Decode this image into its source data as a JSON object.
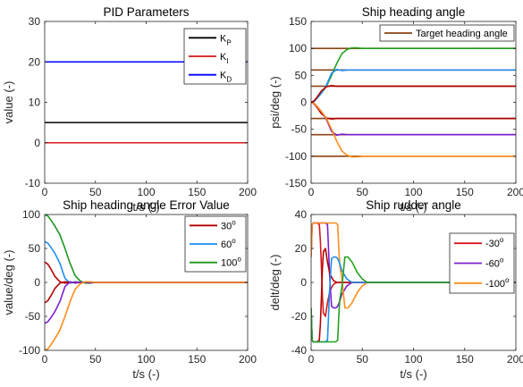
{
  "colors": {
    "black": "#000000",
    "red": "#d7191c",
    "blue": "#0000ff",
    "brown": "#8b4513",
    "green": "#22a022",
    "purple": "#7d1fd1",
    "orange": "#ff8c1a",
    "darkred": "#b50000",
    "lightblue": "#1f8ef1",
    "darkgreen": "#1e961e",
    "axis": "#262626"
  },
  "chart_data": [
    {
      "id": "pid",
      "type": "line",
      "title": "PID Parameters",
      "xlabel": "t/s (-)",
      "ylabel": "value (-)",
      "xlim": [
        0,
        200
      ],
      "ylim": [
        -10,
        30
      ],
      "xticks": [
        "0",
        "50",
        "100",
        "150",
        "200"
      ],
      "yticks": [
        "-10",
        "0",
        "10",
        "20",
        "30"
      ],
      "legend_position": "top-right",
      "series": [
        {
          "name": "K_P",
          "label_main": "K",
          "label_sub": "P",
          "color": "black",
          "x": [
            0,
            200
          ],
          "y": [
            5,
            5
          ]
        },
        {
          "name": "K_I",
          "label_main": "K",
          "label_sub": "I",
          "color": "red",
          "x": [
            0,
            200
          ],
          "y": [
            0,
            0
          ]
        },
        {
          "name": "K_D",
          "label_main": "K",
          "label_sub": "D",
          "color": "blue",
          "x": [
            0,
            200
          ],
          "y": [
            20,
            20
          ]
        }
      ]
    },
    {
      "id": "heading",
      "type": "line",
      "title": "Ship heading angle",
      "xlabel": "t/s (-)",
      "ylabel": "psi/deg (-)",
      "xlim": [
        0,
        200
      ],
      "ylim": [
        -150,
        150
      ],
      "xticks": [
        "0",
        "50",
        "100",
        "150",
        "200"
      ],
      "yticks": [
        "-150",
        "-100",
        "-50",
        "0",
        "50",
        "100",
        "150"
      ],
      "legend_position": "top-right",
      "legend": [
        {
          "name": "Target heading angle",
          "color": "brown"
        }
      ],
      "series": [
        {
          "color": "brown",
          "x": [
            0,
            200
          ],
          "y": [
            100,
            100
          ]
        },
        {
          "color": "brown",
          "x": [
            0,
            200
          ],
          "y": [
            60,
            60
          ]
        },
        {
          "color": "brown",
          "x": [
            0,
            200
          ],
          "y": [
            30,
            30
          ]
        },
        {
          "color": "brown",
          "x": [
            0,
            200
          ],
          "y": [
            -30,
            -30
          ]
        },
        {
          "color": "brown",
          "x": [
            0,
            200
          ],
          "y": [
            -60,
            -60
          ]
        },
        {
          "color": "brown",
          "x": [
            0,
            200
          ],
          "y": [
            -100,
            -100
          ]
        },
        {
          "color": "green",
          "x": [
            0,
            3,
            6,
            10,
            15,
            20,
            25,
            30,
            35,
            40,
            45,
            50,
            60,
            200
          ],
          "y": [
            0,
            2,
            8,
            17,
            30,
            50,
            72,
            90,
            98,
            101,
            101,
            100,
            100,
            100
          ]
        },
        {
          "color": "lightblue",
          "x": [
            0,
            3,
            6,
            10,
            15,
            20,
            25,
            30,
            35,
            40,
            50,
            200
          ],
          "y": [
            0,
            2,
            8,
            17,
            32,
            54,
            61,
            59,
            60,
            60,
            60,
            60
          ]
        },
        {
          "color": "darkred",
          "x": [
            0,
            3,
            6,
            10,
            15,
            20,
            25,
            30,
            40,
            200
          ],
          "y": [
            0,
            3,
            10,
            21,
            29,
            31,
            30,
            30,
            30,
            30
          ]
        },
        {
          "color": "darkred",
          "x": [
            0,
            3,
            6,
            10,
            15,
            20,
            25,
            30,
            40,
            200
          ],
          "y": [
            0,
            -3,
            -10,
            -21,
            -29,
            -31,
            -30,
            -30,
            -30,
            -30
          ]
        },
        {
          "color": "purple",
          "x": [
            0,
            3,
            6,
            10,
            15,
            20,
            25,
            30,
            35,
            40,
            50,
            200
          ],
          "y": [
            0,
            -2,
            -8,
            -17,
            -32,
            -54,
            -61,
            -59,
            -60,
            -60,
            -60,
            -60
          ]
        },
        {
          "color": "orange",
          "x": [
            0,
            3,
            6,
            10,
            15,
            20,
            25,
            30,
            35,
            40,
            45,
            50,
            60,
            200
          ],
          "y": [
            0,
            -2,
            -8,
            -17,
            -30,
            -50,
            -72,
            -90,
            -98,
            -101,
            -101,
            -100,
            -100,
            -100
          ]
        }
      ]
    },
    {
      "id": "error",
      "type": "line",
      "title": "Ship heading angle Error Value",
      "xlabel": "t/s (-)",
      "ylabel": "value/deg (-)",
      "xlim": [
        0,
        200
      ],
      "ylim": [
        -100,
        100
      ],
      "xticks": [
        "0",
        "50",
        "100",
        "150",
        "200"
      ],
      "yticks": [
        "-100",
        "-50",
        "0",
        "50",
        "100"
      ],
      "legend_position": "top-right",
      "series": [
        {
          "name": "30°",
          "label_main": "30",
          "label_sup": "o",
          "color": "darkred",
          "x": [
            0,
            3,
            6,
            10,
            15,
            20,
            25,
            30,
            40,
            200
          ],
          "y": [
            30,
            27,
            20,
            9,
            1,
            -1,
            0,
            0,
            0,
            0
          ]
        },
        {
          "name": "60°",
          "label_main": "60",
          "label_sup": "o",
          "color": "lightblue",
          "x": [
            0,
            3,
            6,
            10,
            15,
            20,
            25,
            30,
            35,
            40,
            50,
            200
          ],
          "y": [
            60,
            58,
            52,
            43,
            28,
            6,
            -1,
            1,
            0,
            0,
            0,
            0
          ]
        },
        {
          "name": "100°",
          "label_main": "100",
          "label_sup": "o",
          "color": "darkgreen",
          "x": [
            0,
            3,
            6,
            10,
            15,
            20,
            25,
            30,
            35,
            40,
            45,
            50,
            60,
            200
          ],
          "y": [
            100,
            98,
            92,
            83,
            70,
            50,
            28,
            10,
            2,
            -1,
            -1,
            0,
            0,
            0
          ]
        },
        {
          "color": "darkred",
          "x": [
            0,
            3,
            6,
            10,
            15,
            20,
            25,
            30,
            40,
            200
          ],
          "y": [
            -30,
            -27,
            -20,
            -9,
            -1,
            1,
            0,
            0,
            0,
            0
          ]
        },
        {
          "color": "purple",
          "x": [
            0,
            3,
            6,
            10,
            15,
            20,
            25,
            30,
            35,
            40,
            50,
            200
          ],
          "y": [
            -60,
            -58,
            -52,
            -43,
            -28,
            -6,
            1,
            -1,
            0,
            0,
            0,
            0
          ]
        },
        {
          "color": "orange",
          "x": [
            0,
            3,
            6,
            10,
            15,
            20,
            25,
            30,
            35,
            40,
            45,
            50,
            60,
            200
          ],
          "y": [
            -100,
            -98,
            -92,
            -83,
            -70,
            -50,
            -28,
            -10,
            -2,
            1,
            1,
            0,
            0,
            0
          ]
        }
      ]
    },
    {
      "id": "rudder",
      "type": "line",
      "title": "Ship rudder angle",
      "xlabel": "t/s (-)",
      "ylabel": "delt/deg (-)",
      "xlim": [
        0,
        200
      ],
      "ylim": [
        -40,
        40
      ],
      "xticks": [
        "0",
        "50",
        "100",
        "150",
        "200"
      ],
      "yticks": [
        "-40",
        "-20",
        "0",
        "20",
        "40"
      ],
      "legend_position": "top-right",
      "series": [
        {
          "name": "-30°",
          "label_main": "-30",
          "label_sup": "o",
          "color": "red",
          "x": [
            0,
            1,
            2,
            4,
            6,
            8,
            9,
            10,
            11,
            12,
            14,
            16,
            18,
            20,
            22,
            25,
            30,
            35,
            40,
            200
          ],
          "y": [
            15,
            34,
            35,
            35,
            35,
            34,
            25,
            10,
            -8,
            -18,
            -20,
            -12,
            -6,
            -3,
            -1,
            0,
            0,
            0,
            0,
            0
          ]
        },
        {
          "name": "-60°",
          "label_main": "-60",
          "label_sup": "o",
          "color": "purple",
          "x": [
            0,
            1,
            2,
            4,
            6,
            8,
            10,
            12,
            14,
            16,
            17,
            18,
            19,
            20,
            22,
            24,
            26,
            28,
            30,
            35,
            40,
            45,
            200
          ],
          "y": [
            15,
            34,
            35,
            35,
            35,
            35,
            35,
            35,
            35,
            34,
            20,
            5,
            -5,
            -14,
            -15,
            -15,
            -14,
            -11,
            -7,
            -2,
            0,
            0,
            0
          ]
        },
        {
          "name": "-100°",
          "label_main": "-100",
          "label_sup": "o",
          "color": "orange",
          "x": [
            0,
            1,
            2,
            4,
            6,
            10,
            15,
            20,
            24,
            26,
            27,
            28,
            30,
            33,
            36,
            40,
            45,
            50,
            55,
            60,
            200
          ],
          "y": [
            15,
            34,
            35,
            35,
            35,
            35,
            35,
            35,
            35,
            34,
            20,
            10,
            3,
            -15,
            -15,
            -12,
            -6,
            -2,
            0,
            0,
            0
          ]
        },
        {
          "color": "darkred",
          "x": [
            0,
            1,
            2,
            4,
            6,
            8,
            9,
            10,
            11,
            12,
            14,
            16,
            18,
            20,
            22,
            25,
            30,
            35,
            40,
            200
          ],
          "y": [
            -15,
            -34,
            -35,
            -35,
            -35,
            -34,
            -25,
            -10,
            8,
            18,
            20,
            12,
            6,
            3,
            1,
            0,
            0,
            0,
            0,
            0
          ]
        },
        {
          "color": "lightblue",
          "x": [
            0,
            1,
            2,
            4,
            6,
            8,
            10,
            12,
            14,
            16,
            17,
            18,
            19,
            20,
            22,
            24,
            26,
            28,
            30,
            35,
            40,
            45,
            200
          ],
          "y": [
            -15,
            -34,
            -35,
            -35,
            -35,
            -35,
            -35,
            -35,
            -35,
            -34,
            -20,
            -5,
            5,
            14,
            15,
            15,
            14,
            11,
            7,
            2,
            0,
            0,
            0
          ]
        },
        {
          "color": "green",
          "x": [
            0,
            1,
            2,
            4,
            6,
            10,
            15,
            20,
            24,
            26,
            27,
            28,
            30,
            33,
            36,
            40,
            45,
            50,
            55,
            60,
            200
          ],
          "y": [
            -15,
            -34,
            -35,
            -35,
            -35,
            -35,
            -35,
            -35,
            -35,
            -34,
            -20,
            -10,
            -3,
            15,
            15,
            12,
            6,
            2,
            0,
            0,
            0
          ]
        }
      ]
    }
  ]
}
